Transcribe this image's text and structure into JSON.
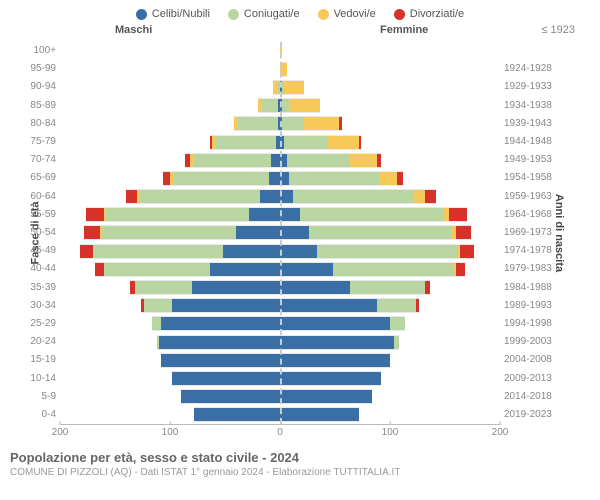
{
  "legend": [
    {
      "label": "Celibi/Nubili",
      "color": "#3a6fa6"
    },
    {
      "label": "Coniugati/e",
      "color": "#b9d6a2"
    },
    {
      "label": "Vedovi/e",
      "color": "#f7c95a"
    },
    {
      "label": "Divorziati/e",
      "color": "#d6322a"
    }
  ],
  "header_male": "Maschi",
  "header_female": "Femmine",
  "header_year_first": "≤ 1923",
  "y_left_title": "Fasce di età",
  "y_right_title": "Anni di nascita",
  "x_ticks": [
    {
      "pos": 0,
      "label": "200"
    },
    {
      "pos": 25,
      "label": "100"
    },
    {
      "pos": 50,
      "label": "0"
    },
    {
      "pos": 75,
      "label": "100"
    },
    {
      "pos": 100,
      "label": "200"
    }
  ],
  "max_value": 200,
  "title": "Popolazione per età, sesso e stato civile - 2024",
  "subtitle": "COMUNE DI PIZZOLI (AQ) - Dati ISTAT 1° gennaio 2024 - Elaborazione TUTTITALIA.IT",
  "colors": {
    "celibi": "#3a6fa6",
    "coniugati": "#b9d6a2",
    "vedovi": "#f7c95a",
    "divorziati": "#d6322a",
    "grid": "#cccccc",
    "text_muted": "#888888"
  },
  "rows": [
    {
      "age": "100+",
      "year": "≤ 1923",
      "m": [
        0,
        0,
        0,
        0
      ],
      "f": [
        0,
        0,
        2,
        0
      ]
    },
    {
      "age": "95-99",
      "year": "1924-1928",
      "m": [
        0,
        0,
        0,
        0
      ],
      "f": [
        0,
        0,
        6,
        0
      ]
    },
    {
      "age": "90-94",
      "year": "1929-1933",
      "m": [
        0,
        2,
        4,
        0
      ],
      "f": [
        2,
        2,
        18,
        0
      ]
    },
    {
      "age": "85-89",
      "year": "1934-1938",
      "m": [
        2,
        14,
        4,
        0
      ],
      "f": [
        2,
        6,
        28,
        0
      ]
    },
    {
      "age": "80-84",
      "year": "1939-1943",
      "m": [
        2,
        36,
        4,
        0
      ],
      "f": [
        2,
        20,
        32,
        2
      ]
    },
    {
      "age": "75-79",
      "year": "1944-1948",
      "m": [
        4,
        54,
        4,
        2
      ],
      "f": [
        4,
        40,
        28,
        2
      ]
    },
    {
      "age": "70-74",
      "year": "1949-1953",
      "m": [
        8,
        70,
        4,
        4
      ],
      "f": [
        6,
        58,
        24,
        4
      ]
    },
    {
      "age": "65-69",
      "year": "1954-1958",
      "m": [
        10,
        86,
        4,
        6
      ],
      "f": [
        8,
        82,
        16,
        6
      ]
    },
    {
      "age": "60-64",
      "year": "1959-1963",
      "m": [
        18,
        110,
        2,
        10
      ],
      "f": [
        12,
        110,
        10,
        10
      ]
    },
    {
      "age": "55-59",
      "year": "1964-1968",
      "m": [
        28,
        130,
        2,
        16
      ],
      "f": [
        18,
        130,
        6,
        16
      ]
    },
    {
      "age": "50-54",
      "year": "1969-1973",
      "m": [
        40,
        122,
        2,
        14
      ],
      "f": [
        26,
        130,
        4,
        14
      ]
    },
    {
      "age": "45-49",
      "year": "1974-1978",
      "m": [
        52,
        118,
        0,
        12
      ],
      "f": [
        34,
        128,
        2,
        12
      ]
    },
    {
      "age": "40-44",
      "year": "1979-1983",
      "m": [
        64,
        96,
        0,
        8
      ],
      "f": [
        48,
        110,
        2,
        8
      ]
    },
    {
      "age": "35-39",
      "year": "1984-1988",
      "m": [
        80,
        52,
        0,
        4
      ],
      "f": [
        64,
        68,
        0,
        4
      ]
    },
    {
      "age": "30-34",
      "year": "1989-1993",
      "m": [
        98,
        26,
        0,
        2
      ],
      "f": [
        88,
        36,
        0,
        2
      ]
    },
    {
      "age": "25-29",
      "year": "1994-1998",
      "m": [
        108,
        8,
        0,
        0
      ],
      "f": [
        100,
        14,
        0,
        0
      ]
    },
    {
      "age": "20-24",
      "year": "1999-2003",
      "m": [
        110,
        2,
        0,
        0
      ],
      "f": [
        104,
        4,
        0,
        0
      ]
    },
    {
      "age": "15-19",
      "year": "2004-2008",
      "m": [
        108,
        0,
        0,
        0
      ],
      "f": [
        100,
        0,
        0,
        0
      ]
    },
    {
      "age": "10-14",
      "year": "2009-2013",
      "m": [
        98,
        0,
        0,
        0
      ],
      "f": [
        92,
        0,
        0,
        0
      ]
    },
    {
      "age": "5-9",
      "year": "2014-2018",
      "m": [
        90,
        0,
        0,
        0
      ],
      "f": [
        84,
        0,
        0,
        0
      ]
    },
    {
      "age": "0-4",
      "year": "2019-2023",
      "m": [
        78,
        0,
        0,
        0
      ],
      "f": [
        72,
        0,
        0,
        0
      ]
    }
  ]
}
